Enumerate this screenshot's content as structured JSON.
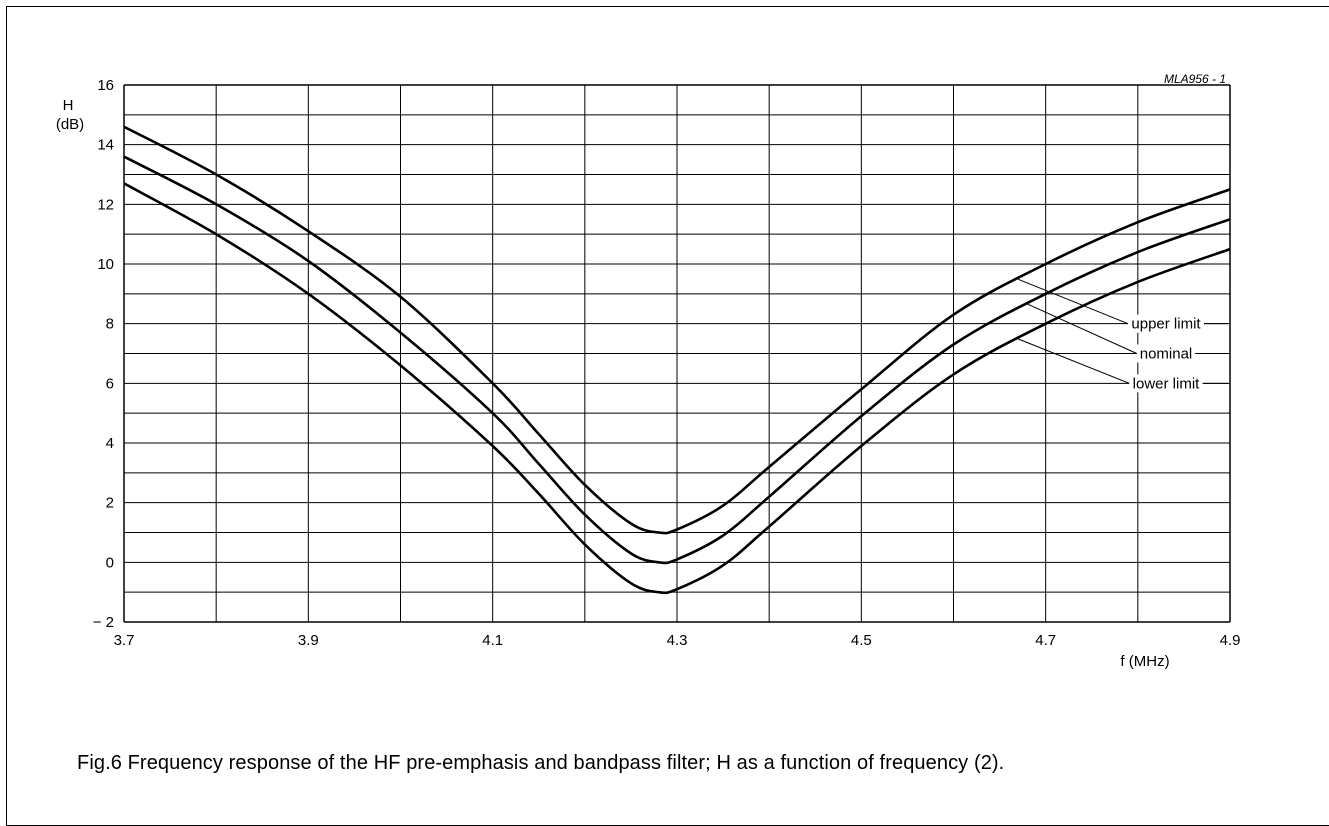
{
  "figure_code": "MLA956 - 1",
  "caption": "Fig.6  Frequency response of the HF pre-emphasis and bandpass filter; H as a function of frequency (2).",
  "chart_data": {
    "type": "line",
    "x_axis_label": "f (MHz)",
    "y_axis_label_line1": "H",
    "y_axis_label_line2": "(dB)",
    "xlim": [
      3.7,
      4.9
    ],
    "ylim": [
      -2,
      16
    ],
    "x_ticks": [
      3.7,
      3.9,
      4.1,
      4.3,
      4.5,
      4.7,
      4.9
    ],
    "x_tick_labels": [
      "3.7",
      "3.9",
      "4.1",
      "4.3",
      "4.5",
      "4.7",
      "4.9"
    ],
    "y_ticks": [
      -2,
      0,
      2,
      4,
      6,
      8,
      10,
      12,
      14,
      16
    ],
    "y_tick_labels": [
      "− 2",
      "0",
      "2",
      "4",
      "6",
      "8",
      "10",
      "12",
      "14",
      "16"
    ],
    "grid": true,
    "x_grid_step": 0.1,
    "y_grid_step": 1,
    "series": [
      {
        "name": "upper limit",
        "x": [
          3.7,
          3.8,
          3.9,
          4.0,
          4.1,
          4.15,
          4.2,
          4.25,
          4.28,
          4.3,
          4.35,
          4.4,
          4.5,
          4.6,
          4.7,
          4.8,
          4.9
        ],
        "y": [
          14.6,
          13.0,
          11.1,
          8.9,
          6.0,
          4.3,
          2.6,
          1.3,
          1.0,
          1.1,
          1.9,
          3.2,
          5.8,
          8.3,
          10.0,
          11.4,
          12.5
        ]
      },
      {
        "name": "nominal",
        "x": [
          3.7,
          3.8,
          3.9,
          4.0,
          4.1,
          4.15,
          4.2,
          4.25,
          4.28,
          4.3,
          4.35,
          4.4,
          4.5,
          4.6,
          4.7,
          4.8,
          4.9
        ],
        "y": [
          13.6,
          12.0,
          10.1,
          7.7,
          5.0,
          3.3,
          1.6,
          0.3,
          0.0,
          0.1,
          0.9,
          2.2,
          4.9,
          7.3,
          9.0,
          10.4,
          11.5
        ]
      },
      {
        "name": "lower limit",
        "x": [
          3.7,
          3.8,
          3.9,
          4.0,
          4.1,
          4.15,
          4.2,
          4.25,
          4.28,
          4.3,
          4.35,
          4.4,
          4.5,
          4.6,
          4.7,
          4.8,
          4.9
        ],
        "y": [
          12.7,
          11.0,
          9.0,
          6.6,
          3.9,
          2.3,
          0.6,
          -0.7,
          -1.0,
          -0.9,
          -0.1,
          1.2,
          3.9,
          6.3,
          8.0,
          9.4,
          10.5
        ]
      }
    ],
    "annotations": [
      {
        "text": "upper limit",
        "series": "upper limit",
        "anchor_x": 4.67,
        "label_y": 8.0
      },
      {
        "text": "nominal",
        "series": "nominal",
        "anchor_x": 4.68,
        "label_y": 7.0
      },
      {
        "text": "lower limit",
        "series": "lower limit",
        "anchor_x": 4.67,
        "label_y": 6.0
      }
    ],
    "line_color": "#000000"
  }
}
